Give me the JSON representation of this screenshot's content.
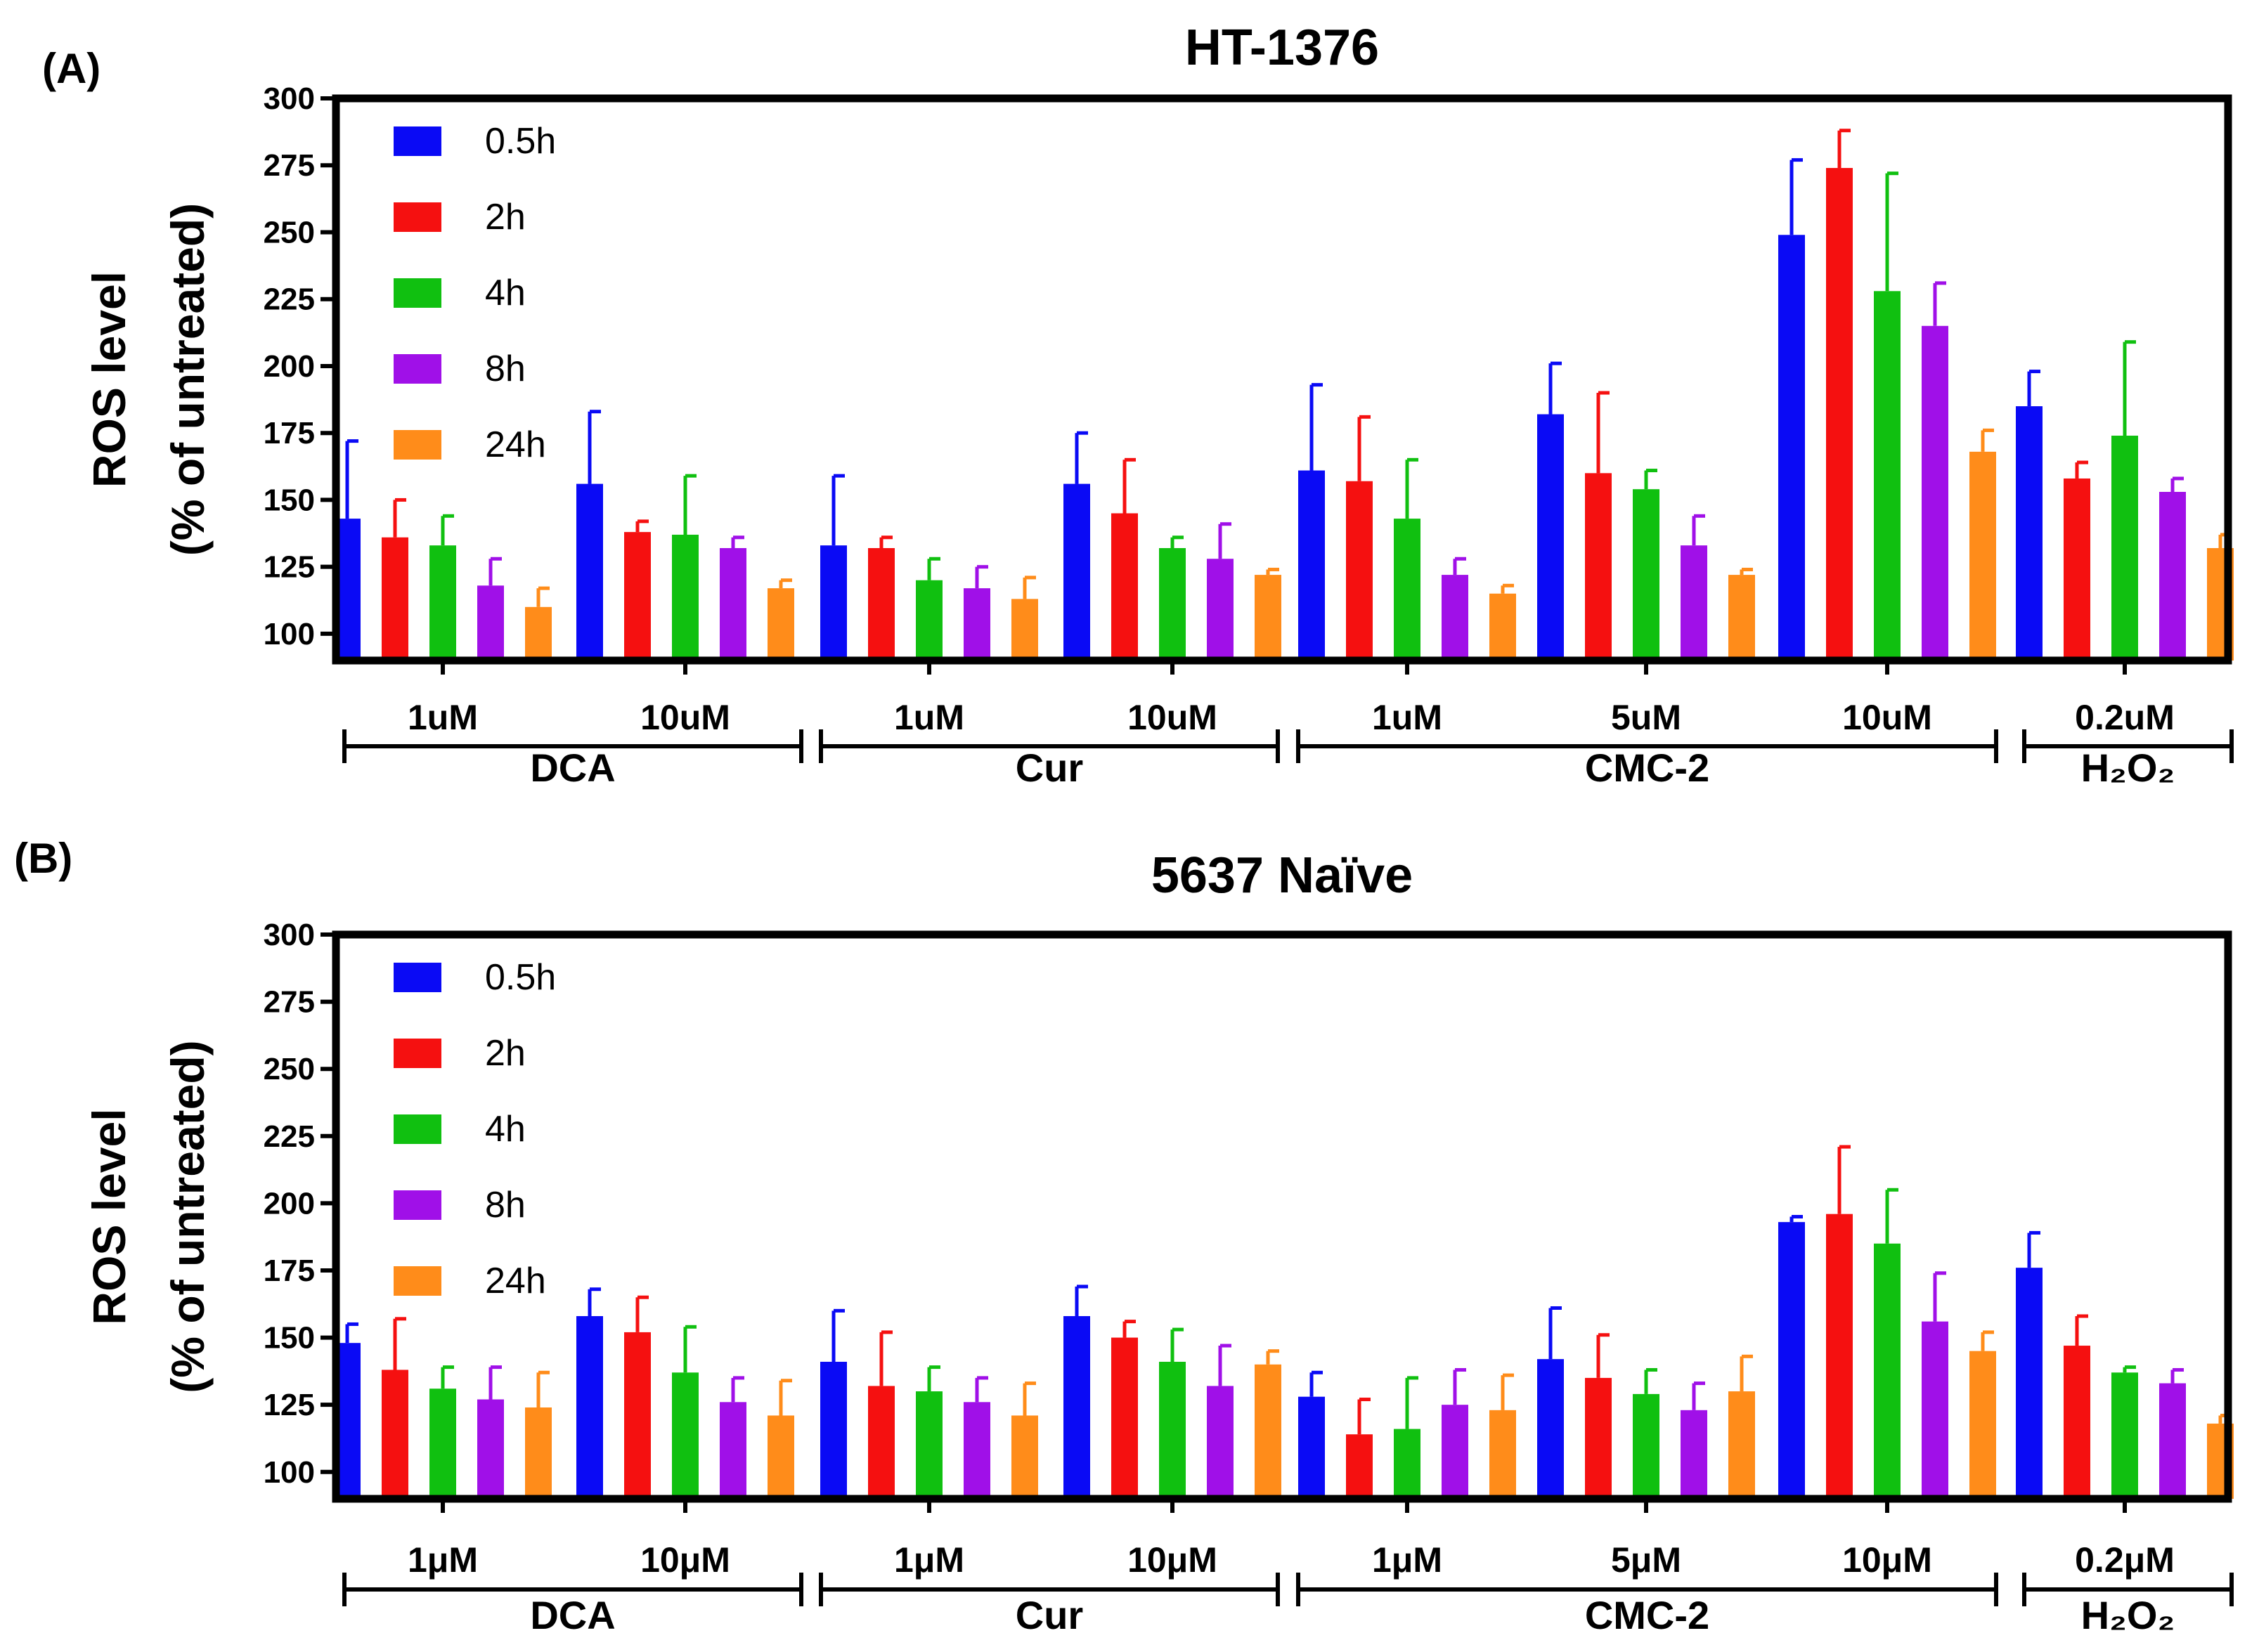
{
  "panels": [
    {
      "letter": "(A)",
      "title": "HT-1376",
      "ylabel_line1": "ROS level",
      "ylabel_line2": "(% of untreated)",
      "chart_data": {
        "type": "bar",
        "title": "HT-1376",
        "ylabel": "ROS level (% of untreated)",
        "xlabel": "",
        "ylim": [
          90,
          300
        ],
        "yticks": [
          100,
          125,
          150,
          175,
          200,
          225,
          250,
          275,
          300
        ],
        "legend_position": "top-left",
        "categories": [
          "1uM",
          "10uM",
          "1uM",
          "10uM",
          "1uM",
          "5uM",
          "10uM",
          "0.2uM"
        ],
        "groups": [
          {
            "name": "DCA",
            "span": [
              0,
              1
            ]
          },
          {
            "name": "Cur",
            "span": [
              2,
              3
            ]
          },
          {
            "name": "CMC-2",
            "span": [
              4,
              6
            ]
          },
          {
            "name": "H2O2",
            "span": [
              7,
              7
            ]
          }
        ],
        "series": [
          {
            "name": "0.5h",
            "color": "#0a0af5",
            "values": [
              143,
              156,
              133,
              156,
              161,
              182,
              249,
              185
            ],
            "errors": [
              29,
              27,
              26,
              19,
              32,
              19,
              28,
              13
            ]
          },
          {
            "name": "2h",
            "color": "#f51010",
            "values": [
              136,
              138,
              132,
              145,
              157,
              160,
              274,
              158
            ],
            "errors": [
              14,
              4,
              4,
              20,
              24,
              30,
              14,
              6
            ]
          },
          {
            "name": "4h",
            "color": "#10c010",
            "values": [
              133,
              137,
              120,
              132,
              143,
              154,
              228,
              174
            ],
            "errors": [
              11,
              22,
              8,
              4,
              22,
              7,
              44,
              35
            ]
          },
          {
            "name": "8h",
            "color": "#a010e8",
            "values": [
              118,
              132,
              117,
              128,
              122,
              133,
              215,
              153
            ],
            "errors": [
              10,
              4,
              8,
              13,
              6,
              11,
              16,
              5
            ]
          },
          {
            "name": "24h",
            "color": "#ff8c1a",
            "values": [
              110,
              117,
              113,
              122,
              115,
              122,
              168,
              132
            ],
            "errors": [
              7,
              3,
              8,
              2,
              3,
              2,
              8,
              5
            ]
          }
        ]
      }
    },
    {
      "letter": "(B)",
      "title": "5637 Naïve",
      "ylabel_line1": "ROS level",
      "ylabel_line2": "(% of untreated)",
      "chart_data": {
        "type": "bar",
        "title": "5637 Naïve",
        "ylabel": "ROS level (% of untreated)",
        "xlabel": "",
        "ylim": [
          90,
          300
        ],
        "yticks": [
          100,
          125,
          150,
          175,
          200,
          225,
          250,
          275,
          300
        ],
        "legend_position": "top-left",
        "categories": [
          "1μM",
          "10μM",
          "1μM",
          "10μM",
          "1μM",
          "5μM",
          "10μM",
          "0.2μM"
        ],
        "groups": [
          {
            "name": "DCA",
            "span": [
              0,
              1
            ]
          },
          {
            "name": "Cur",
            "span": [
              2,
              3
            ]
          },
          {
            "name": "CMC-2",
            "span": [
              4,
              6
            ]
          },
          {
            "name": "H2O2",
            "span": [
              7,
              7
            ]
          }
        ],
        "series": [
          {
            "name": "0.5h",
            "color": "#0a0af5",
            "values": [
              148,
              158,
              141,
              158,
              128,
              142,
              193,
              176
            ],
            "errors": [
              7,
              10,
              19,
              11,
              9,
              19,
              2,
              13
            ]
          },
          {
            "name": "2h",
            "color": "#f51010",
            "values": [
              138,
              152,
              132,
              150,
              114,
              135,
              196,
              147
            ],
            "errors": [
              19,
              13,
              20,
              6,
              13,
              16,
              25,
              11
            ]
          },
          {
            "name": "4h",
            "color": "#10c010",
            "values": [
              131,
              137,
              130,
              141,
              116,
              129,
              185,
              137
            ],
            "errors": [
              8,
              17,
              9,
              12,
              19,
              9,
              20,
              2
            ]
          },
          {
            "name": "8h",
            "color": "#a010e8",
            "values": [
              127,
              126,
              126,
              132,
              125,
              123,
              156,
              133
            ],
            "errors": [
              12,
              9,
              9,
              15,
              13,
              10,
              18,
              5
            ]
          },
          {
            "name": "24h",
            "color": "#ff8c1a",
            "values": [
              124,
              121,
              121,
              140,
              123,
              130,
              145,
              118
            ],
            "errors": [
              13,
              13,
              12,
              5,
              13,
              13,
              7,
              3
            ]
          }
        ]
      }
    }
  ]
}
